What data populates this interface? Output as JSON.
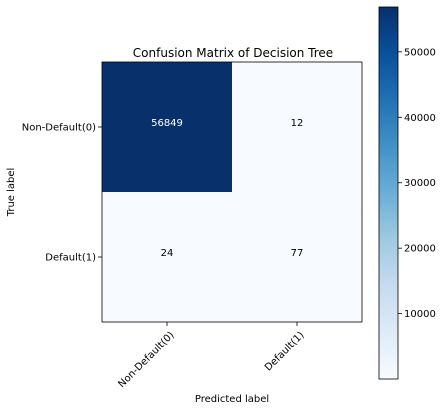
{
  "chart_data": {
    "type": "heatmap",
    "title": "Confusion Matrix of Decision Tree",
    "xlabel": "Predicted label",
    "ylabel": "True label",
    "x_categories": [
      "Non-Default(0)",
      "Default(1)"
    ],
    "y_categories": [
      "Non-Default(0)",
      "Default(1)"
    ],
    "values": [
      [
        56849,
        12
      ],
      [
        24,
        77
      ]
    ],
    "colormap": "Blues",
    "colormap_low": "#f7fbff",
    "colormap_high": "#08306b",
    "colorbar": {
      "ticks": [
        10000,
        20000,
        30000,
        40000,
        50000
      ],
      "tick_labels": [
        "10000",
        "20000",
        "30000",
        "40000",
        "50000"
      ],
      "range": [
        12,
        56849
      ]
    },
    "grid": false,
    "legend": "colorbar-right"
  }
}
